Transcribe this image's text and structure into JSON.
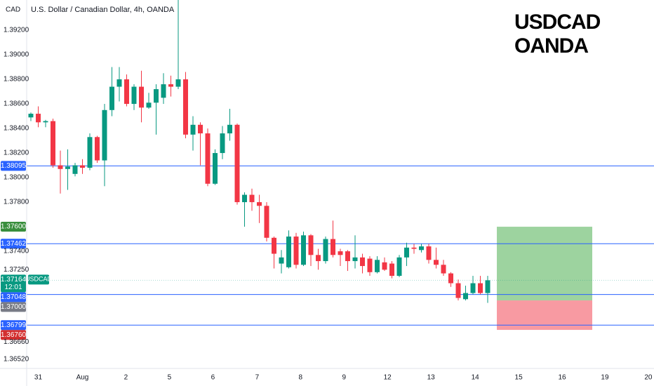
{
  "header": {
    "currency": "CAD",
    "title": "U.S. Dollar / Canadian Dollar, 4h, OANDA"
  },
  "chart_data": {
    "type": "candlestick",
    "watermark": [
      "USDCAD",
      "OANDA"
    ],
    "up_color": "#089981",
    "down_color": "#f23645",
    "open": [
      1.3849,
      1.3852,
      1.3845,
      1.3846,
      1.381,
      1.3807,
      1.3803,
      1.381,
      1.3808,
      1.3833,
      1.3814,
      1.3855,
      1.3874,
      1.388,
      1.386,
      1.3874,
      1.3857,
      1.3861,
      1.3865,
      1.3876,
      1.3874,
      1.388,
      1.3835,
      1.3843,
      1.3836,
      1.3795,
      1.382,
      1.3836,
      1.3843,
      1.378,
      1.3786,
      1.378,
      1.3777,
      1.3751,
      1.373,
      1.3727,
      1.3752,
      1.3729,
      1.3753,
      1.3737,
      1.3732,
      1.375,
      1.374,
      1.374,
      1.3732,
      1.3735,
      1.3734,
      1.3723,
      1.3731,
      1.373,
      1.372,
      1.3735,
      1.3743,
      1.3741,
      1.3744,
      1.3733,
      1.3729,
      1.3722,
      1.3714,
      1.3701,
      1.3706,
      1.3714,
      1.3706
    ],
    "high": [
      1.3853,
      1.3858,
      1.3847,
      1.3848,
      1.3822,
      1.3823,
      1.3812,
      1.3815,
      1.3836,
      1.3834,
      1.386,
      1.389,
      1.389,
      1.3884,
      1.3876,
      1.3887,
      1.3869,
      1.3876,
      1.3885,
      1.3883,
      1.3946,
      1.3886,
      1.385,
      1.3845,
      1.384,
      1.3823,
      1.3842,
      1.3856,
      1.3844,
      1.3788,
      1.3791,
      1.3786,
      1.378,
      1.3752,
      1.3741,
      1.3757,
      1.3755,
      1.3756,
      1.3754,
      1.3742,
      1.3752,
      1.3765,
      1.3742,
      1.3741,
      1.3753,
      1.3738,
      1.3736,
      1.3736,
      1.3735,
      1.3732,
      1.3737,
      1.3747,
      1.3746,
      1.3746,
      1.3746,
      1.3743,
      1.3733,
      1.3723,
      1.3717,
      1.3712,
      1.372,
      1.372,
      1.372
    ],
    "low": [
      1.3846,
      1.3841,
      1.3841,
      1.3808,
      1.3787,
      1.379,
      1.3801,
      1.3803,
      1.3806,
      1.3812,
      1.3793,
      1.385,
      1.3862,
      1.3858,
      1.3855,
      1.3845,
      1.3856,
      1.3835,
      1.386,
      1.3866,
      1.3872,
      1.3832,
      1.3822,
      1.381,
      1.3793,
      1.3794,
      1.3815,
      1.383,
      1.3778,
      1.376,
      1.3773,
      1.3763,
      1.3748,
      1.3726,
      1.3722,
      1.3726,
      1.3726,
      1.3728,
      1.3728,
      1.3725,
      1.373,
      1.3735,
      1.3728,
      1.3724,
      1.3726,
      1.3722,
      1.372,
      1.3722,
      1.3724,
      1.3718,
      1.3719,
      1.3728,
      1.3738,
      1.3739,
      1.373,
      1.3726,
      1.372,
      1.3711,
      1.37,
      1.37,
      1.3705,
      1.3705,
      1.3698
    ],
    "close": [
      1.3852,
      1.3845,
      1.3846,
      1.381,
      1.3807,
      1.3809,
      1.381,
      1.3808,
      1.3833,
      1.3814,
      1.3855,
      1.3874,
      1.388,
      1.386,
      1.3874,
      1.3857,
      1.3861,
      1.3872,
      1.3876,
      1.3874,
      1.388,
      1.3835,
      1.3843,
      1.3836,
      1.3795,
      1.382,
      1.3836,
      1.3843,
      1.378,
      1.3786,
      1.378,
      1.3777,
      1.3751,
      1.3738,
      1.3735,
      1.3752,
      1.3729,
      1.3753,
      1.3737,
      1.3732,
      1.375,
      1.3737,
      1.3737,
      1.3732,
      1.3735,
      1.3728,
      1.3723,
      1.3733,
      1.3725,
      1.372,
      1.3735,
      1.3743,
      1.3742,
      1.3744,
      1.3733,
      1.3729,
      1.3722,
      1.3714,
      1.3702,
      1.3706,
      1.3714,
      1.3706,
      1.37164
    ],
    "xlim": [
      -0.57,
      84.57
    ],
    "xticks": [
      {
        "value": 1.0,
        "label": "31"
      },
      {
        "value": 7.0,
        "label": "Aug"
      },
      {
        "value": 12.9,
        "label": "2"
      },
      {
        "value": 18.8,
        "label": "5"
      },
      {
        "value": 24.7,
        "label": "6"
      },
      {
        "value": 30.7,
        "label": "7"
      },
      {
        "value": 36.6,
        "label": "8"
      },
      {
        "value": 42.5,
        "label": "9"
      },
      {
        "value": 48.4,
        "label": "12"
      },
      {
        "value": 54.3,
        "label": "13"
      },
      {
        "value": 60.3,
        "label": "14"
      },
      {
        "value": 66.2,
        "label": "15"
      },
      {
        "value": 72.1,
        "label": "16"
      },
      {
        "value": 77.9,
        "label": "19"
      },
      {
        "value": 83.8,
        "label": "20"
      }
    ],
    "ylim": [
      1.36446,
      1.39446
    ],
    "yticks": [
      {
        "value": 1.392,
        "label": "1.39200"
      },
      {
        "value": 1.39,
        "label": "1.39000"
      },
      {
        "value": 1.388,
        "label": "1.38800"
      },
      {
        "value": 1.386,
        "label": "1.38600"
      },
      {
        "value": 1.384,
        "label": "1.38400"
      },
      {
        "value": 1.382,
        "label": "1.38200"
      },
      {
        "value": 1.38,
        "label": "1.38000"
      },
      {
        "value": 1.378,
        "label": "1.37800"
      },
      {
        "value": 1.374,
        "label": "1.37400"
      },
      {
        "value": 1.3725,
        "label": "1.37250"
      },
      {
        "value": 1.3666,
        "label": "1.36660"
      },
      {
        "value": 1.3652,
        "label": "1.36520"
      }
    ],
    "hlines": [
      {
        "value": 1.38095,
        "label": "1.38095"
      },
      {
        "value": 1.37462,
        "label": "1.37462"
      },
      {
        "value": 1.37048,
        "label": "1.37048"
      },
      {
        "value": 1.36799,
        "label": "1.36799"
      }
    ],
    "hline_color": "#2962ff",
    "position": {
      "start": 63.24,
      "end": 76.19,
      "target": {
        "value": 1.376,
        "label": "1.37600"
      },
      "entry": {
        "value": 1.37,
        "label": "1.37000"
      },
      "stop": {
        "value": 1.3676,
        "label": "1.36760"
      }
    },
    "last_price": {
      "value": 1.37164,
      "label": "1.37164",
      "symbol": "USDCAD",
      "countdown": "12:01"
    }
  }
}
